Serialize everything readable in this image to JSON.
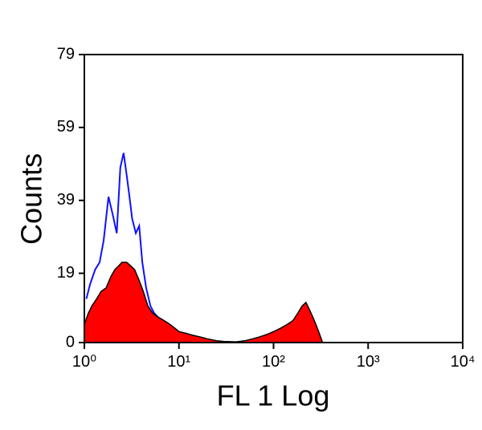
{
  "chart_data": {
    "type": "histogram-overlay",
    "xlabel": "FL 1 Log",
    "ylabel": "Counts",
    "xscale": "log",
    "xlim": [
      1,
      10000
    ],
    "xticks": [
      {
        "value": 1,
        "label": "10⁰"
      },
      {
        "value": 10,
        "label": "10¹"
      },
      {
        "value": 100,
        "label": "10²"
      },
      {
        "value": 1000,
        "label": "10³"
      },
      {
        "value": 10000,
        "label": "10⁴"
      }
    ],
    "ylim": [
      0,
      79
    ],
    "yticks": [
      0,
      19,
      39,
      59,
      79
    ],
    "series": [
      {
        "style": "line",
        "color": "#1010ff",
        "x": [
          1.05,
          1.15,
          1.3,
          1.45,
          1.6,
          1.8,
          2,
          2.2,
          2.4,
          2.6,
          2.8,
          3,
          3.2,
          3.5,
          3.8,
          4.1,
          4.5,
          5,
          5.5,
          6,
          7,
          8,
          9,
          10,
          12,
          15,
          20,
          25,
          30
        ],
        "values": [
          12,
          16,
          20,
          22,
          28,
          40,
          35,
          30,
          48,
          52,
          46,
          40,
          34,
          30,
          32,
          22,
          15,
          10,
          8,
          7,
          5,
          4,
          3,
          2,
          1.5,
          1,
          0.5,
          0.2,
          0
        ]
      },
      {
        "style": "area",
        "color": "#ff0000",
        "x": [
          1,
          1.1,
          1.2,
          1.35,
          1.5,
          1.7,
          1.9,
          2.1,
          2.3,
          2.5,
          2.8,
          3.1,
          3.4,
          3.8,
          4.2,
          4.7,
          5.3,
          6,
          7,
          8,
          9,
          10,
          12,
          14,
          17,
          20,
          25,
          30,
          40,
          50,
          60,
          70,
          80,
          90,
          100,
          120,
          140,
          160,
          180,
          200,
          220,
          240,
          260,
          280,
          300,
          330
        ],
        "values": [
          5,
          8,
          10,
          12,
          14,
          15,
          18,
          20,
          21,
          22,
          22,
          21,
          20,
          17,
          14,
          10,
          8,
          7,
          6,
          5,
          4,
          3,
          2.5,
          2,
          1.5,
          1,
          0.5,
          0.3,
          0.2,
          0.5,
          1,
          1.5,
          2,
          2.5,
          3,
          4,
          5,
          6,
          8,
          10,
          11,
          9,
          7,
          5,
          3,
          0
        ]
      }
    ]
  }
}
